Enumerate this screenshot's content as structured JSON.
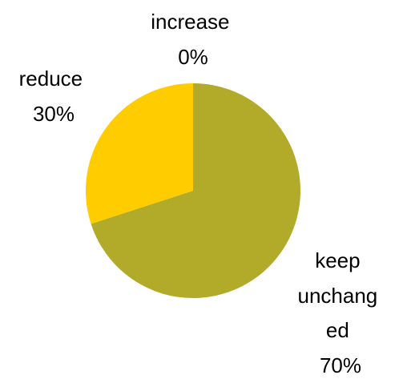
{
  "chart_data": {
    "type": "pie",
    "title": "",
    "start_angle_deg": 0,
    "direction": "clockwise",
    "slices": [
      {
        "label_lines": [
          "increase"
        ],
        "percent_label": "0%",
        "value": 0,
        "color": "#FFCC00"
      },
      {
        "label_lines": [
          "keep",
          "unchang",
          "ed"
        ],
        "percent_label": "70%",
        "value": 70,
        "color": "#B2AA29"
      },
      {
        "label_lines": [
          "reduce"
        ],
        "percent_label": "30%",
        "value": 30,
        "color": "#FFCC00"
      }
    ]
  }
}
